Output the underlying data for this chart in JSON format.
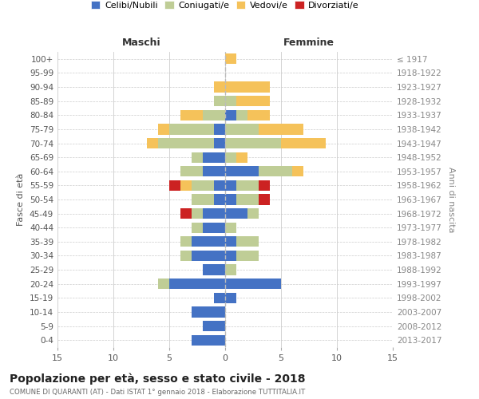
{
  "age_groups": [
    "0-4",
    "5-9",
    "10-14",
    "15-19",
    "20-24",
    "25-29",
    "30-34",
    "35-39",
    "40-44",
    "45-49",
    "50-54",
    "55-59",
    "60-64",
    "65-69",
    "70-74",
    "75-79",
    "80-84",
    "85-89",
    "90-94",
    "95-99",
    "100+"
  ],
  "birth_years": [
    "2013-2017",
    "2008-2012",
    "2003-2007",
    "1998-2002",
    "1993-1997",
    "1988-1992",
    "1983-1987",
    "1978-1982",
    "1973-1977",
    "1968-1972",
    "1963-1967",
    "1958-1962",
    "1953-1957",
    "1948-1952",
    "1943-1947",
    "1938-1942",
    "1933-1937",
    "1928-1932",
    "1923-1927",
    "1918-1922",
    "≤ 1917"
  ],
  "males": {
    "celibi": [
      3,
      2,
      3,
      1,
      5,
      2,
      3,
      3,
      2,
      2,
      1,
      1,
      2,
      2,
      1,
      1,
      0,
      0,
      0,
      0,
      0
    ],
    "coniugati": [
      0,
      0,
      0,
      0,
      1,
      0,
      1,
      1,
      1,
      1,
      2,
      2,
      2,
      1,
      5,
      4,
      2,
      1,
      0,
      0,
      0
    ],
    "vedovi": [
      0,
      0,
      0,
      0,
      0,
      0,
      0,
      0,
      0,
      0,
      0,
      1,
      0,
      0,
      1,
      1,
      2,
      0,
      1,
      0,
      0
    ],
    "divorziati": [
      0,
      0,
      0,
      0,
      0,
      0,
      0,
      0,
      0,
      1,
      0,
      1,
      0,
      0,
      0,
      0,
      0,
      0,
      0,
      0,
      0
    ]
  },
  "females": {
    "nubili": [
      0,
      0,
      0,
      1,
      5,
      0,
      1,
      1,
      0,
      2,
      1,
      1,
      3,
      0,
      0,
      0,
      1,
      0,
      0,
      0,
      0
    ],
    "coniugate": [
      0,
      0,
      0,
      0,
      0,
      1,
      2,
      2,
      1,
      1,
      2,
      2,
      3,
      1,
      5,
      3,
      1,
      1,
      0,
      0,
      0
    ],
    "vedove": [
      0,
      0,
      0,
      0,
      0,
      0,
      0,
      0,
      0,
      0,
      0,
      0,
      1,
      1,
      4,
      4,
      2,
      3,
      4,
      0,
      1
    ],
    "divorziate": [
      0,
      0,
      0,
      0,
      0,
      0,
      0,
      0,
      0,
      0,
      1,
      1,
      0,
      0,
      0,
      0,
      0,
      0,
      0,
      0,
      0
    ]
  },
  "colors": {
    "celibi_nubili": "#4472C4",
    "coniugati": "#BFCD96",
    "vedovi": "#F5C25A",
    "divorziati": "#CC2222"
  },
  "title": "Popolazione per età, sesso e stato civile - 2018",
  "subtitle": "COMUNE DI QUARANTI (AT) - Dati ISTAT 1° gennaio 2018 - Elaborazione TUTTITALIA.IT",
  "xlabel_left": "Maschi",
  "xlabel_right": "Femmine",
  "ylabel_left": "Fasce di età",
  "ylabel_right": "Anni di nascita",
  "xlim": 15,
  "legend_labels": [
    "Celibi/Nubili",
    "Coniugati/e",
    "Vedovi/e",
    "Divorziati/e"
  ],
  "background_color": "#ffffff",
  "grid_color": "#cccccc"
}
